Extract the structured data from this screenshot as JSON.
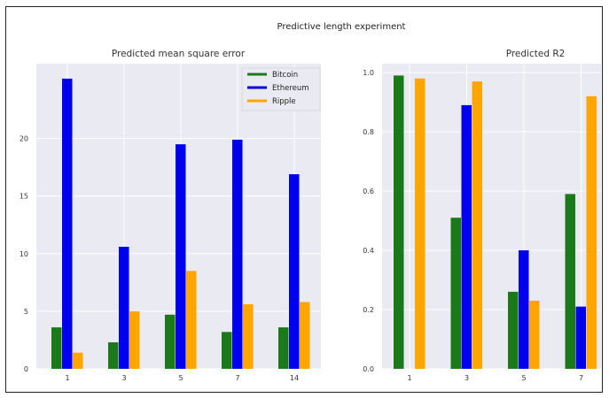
{
  "figure": {
    "title": "Predictive length experiment"
  },
  "colors": {
    "Bitcoin": "#1a7a1a",
    "Ethereum": "#0000ee",
    "Ripple": "#ffa500",
    "panel_bg": "#eaeaf2",
    "grid": "#ffffff"
  },
  "chart_data": [
    {
      "type": "bar",
      "title": "Predicted mean square error",
      "xlabel": "",
      "ylabel": "",
      "categories": [
        "1",
        "3",
        "5",
        "7",
        "14"
      ],
      "series": [
        {
          "name": "Bitcoin",
          "values": [
            3.6,
            2.3,
            4.7,
            3.2,
            3.6
          ]
        },
        {
          "name": "Ethereum",
          "values": [
            25.2,
            10.6,
            19.5,
            19.9,
            16.9
          ]
        },
        {
          "name": "Ripple",
          "values": [
            1.4,
            5.0,
            8.5,
            5.6,
            5.8
          ]
        }
      ],
      "ylim": [
        0,
        26.5
      ],
      "yticks": [
        0,
        5,
        10,
        15,
        20
      ],
      "ytick_labels": [
        "0",
        "5",
        "10",
        "15",
        "20"
      ],
      "grid": true,
      "legend": {
        "placement": "top-right",
        "labels": [
          "Bitcoin",
          "Ethereum",
          "Ripple"
        ]
      }
    },
    {
      "type": "bar",
      "title": "Predicted R2",
      "xlabel": "",
      "ylabel": "",
      "categories": [
        "1",
        "3",
        "5",
        "7"
      ],
      "series": [
        {
          "name": "Bitcoin",
          "values": [
            0.99,
            0.51,
            0.26,
            0.59
          ]
        },
        {
          "name": "Ethereum",
          "values": [
            0.0,
            0.89,
            0.4,
            0.21
          ]
        },
        {
          "name": "Ripple",
          "values": [
            0.98,
            0.97,
            0.23,
            0.92
          ]
        }
      ],
      "ylim": [
        0,
        1.03
      ],
      "yticks": [
        0,
        0.2,
        0.4,
        0.6,
        0.8,
        1.0
      ],
      "ytick_labels": [
        "0.0",
        "0.2",
        "0.4",
        "0.6",
        "0.8",
        "1.0"
      ],
      "grid": true
    }
  ]
}
